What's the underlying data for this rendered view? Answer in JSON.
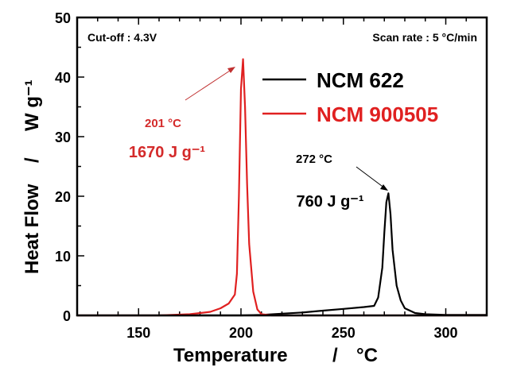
{
  "chart_data": {
    "type": "line",
    "xlabel": "Temperature",
    "xlabel_unit": "°C",
    "ylabel": "Heat Flow",
    "ylabel_unit": "W g⁻¹",
    "xlim": [
      120,
      320
    ],
    "ylim": [
      0,
      50
    ],
    "xticks": [
      150,
      200,
      250,
      300
    ],
    "yticks": [
      0,
      10,
      20,
      30,
      40,
      50
    ],
    "grid": false,
    "legend_placement": "top-right",
    "annotations": {
      "cutoff": "Cut-off : 4.3V",
      "scan_rate": "Scan rate : 5 °C/min",
      "red_peak_temp": "201 °C",
      "red_heat": "1670 J g⁻¹",
      "black_peak_temp": "272 °C",
      "black_heat": "760 J g⁻¹"
    },
    "series": [
      {
        "name": "NCM 622",
        "color": "#000000",
        "x": [
          120,
          200,
          210,
          220,
          230,
          240,
          250,
          260,
          265,
          267,
          269,
          270,
          271,
          272,
          273,
          274,
          276,
          278,
          280,
          285,
          290,
          300,
          320
        ],
        "y": [
          0,
          0,
          0.1,
          0.3,
          0.5,
          0.8,
          1.1,
          1.4,
          1.6,
          3,
          8,
          14,
          19,
          20.5,
          17,
          11,
          5,
          2.5,
          1.2,
          0.4,
          0.2,
          0.1,
          0.1
        ]
      },
      {
        "name": "NCM 900505",
        "color": "#e02020",
        "x": [
          120,
          160,
          175,
          185,
          190,
          194,
          197,
          198,
          199,
          200,
          201,
          202,
          203,
          204,
          206,
          208,
          210,
          215,
          320
        ],
        "y": [
          0,
          0,
          0.2,
          0.6,
          1.2,
          2,
          3.5,
          7,
          20,
          38,
          43,
          35,
          22,
          12,
          4,
          1,
          0.2,
          0,
          0
        ]
      }
    ]
  }
}
